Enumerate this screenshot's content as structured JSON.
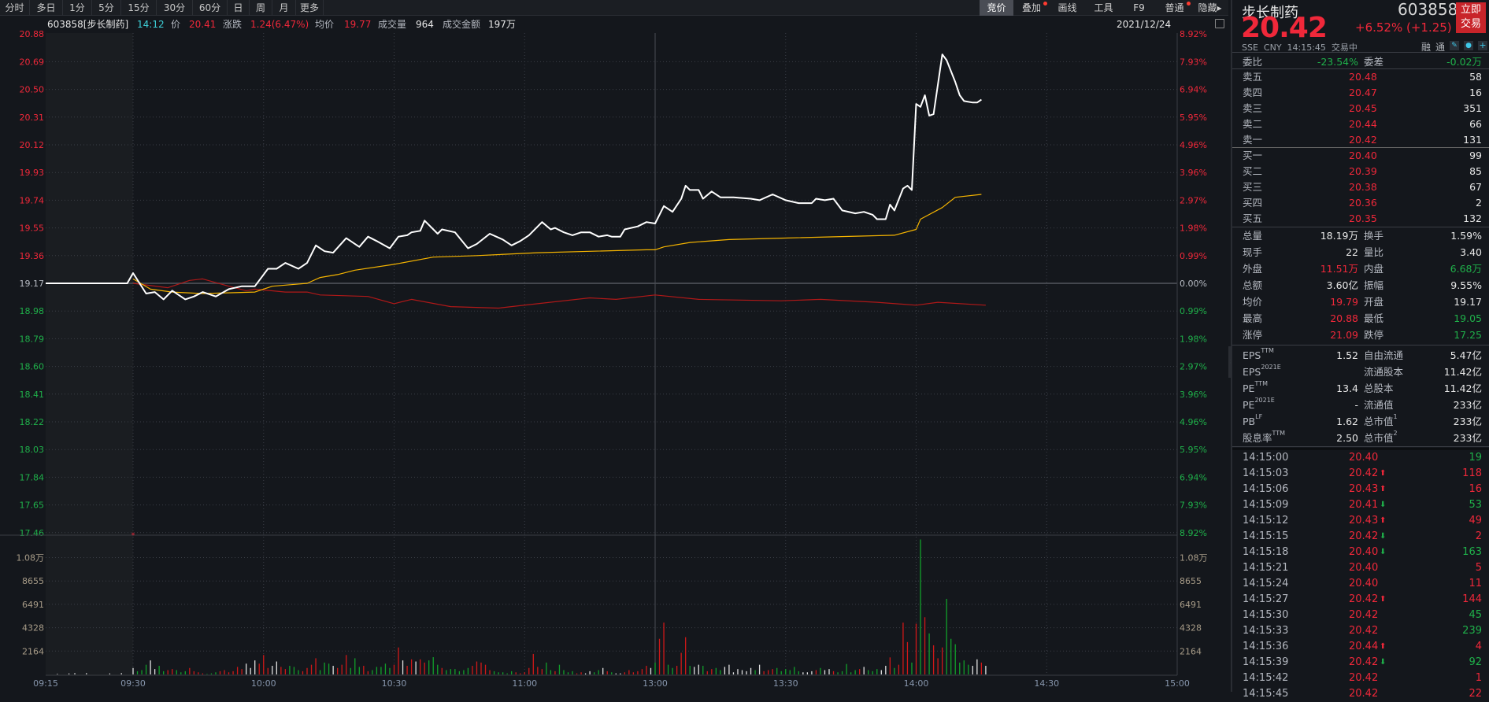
{
  "toolbar": {
    "period_tabs": [
      "分时",
      "多日",
      "1分",
      "5分",
      "15分",
      "30分",
      "60分",
      "日",
      "周",
      "月",
      "更多"
    ],
    "right_tabs": [
      {
        "label": "竞价",
        "active": true,
        "dot": false
      },
      {
        "label": "叠加",
        "active": false,
        "dot": true
      },
      {
        "label": "画线",
        "active": false,
        "dot": false
      },
      {
        "label": "工具",
        "active": false,
        "dot": false
      },
      {
        "label": "F9",
        "active": false,
        "dot": false
      },
      {
        "label": "普通",
        "active": false,
        "dot": true
      },
      {
        "label": "隐藏▸",
        "active": false,
        "dot": false
      }
    ]
  },
  "info": {
    "code_name": "603858[步长制药]",
    "time": "14:12",
    "price_label": "价",
    "price": "20.41",
    "change_label": "涨跌",
    "change": "1.24(6.47%)",
    "avg_label": "均价",
    "avg": "19.77",
    "vol_label": "成交量",
    "vol": "964",
    "amount_label": "成交金额",
    "amount": "197万",
    "date": "2021/12/24"
  },
  "colors": {
    "up": "#f0283a",
    "down": "#1fb04a",
    "price_line": "#ffffff",
    "avg_line": "#f5b400",
    "overlay_line": "#b01818",
    "grid": "#3a3e46"
  },
  "chart_data": {
    "type": "line",
    "title": "603858 步长制药 分时",
    "prev_close": 19.17,
    "price_axis_left": [
      "20.88",
      "20.69",
      "20.50",
      "20.31",
      "20.12",
      "19.93",
      "19.74",
      "19.55",
      "19.36",
      "19.17",
      "18.98",
      "18.79",
      "18.60",
      "18.41",
      "18.22",
      "18.03",
      "17.84",
      "17.65",
      "17.46"
    ],
    "pct_axis_right": [
      "8.92%",
      "7.93%",
      "6.94%",
      "5.95%",
      "4.96%",
      "3.96%",
      "2.97%",
      "1.98%",
      "0.99%",
      "0.00%",
      "0.99%",
      "1.98%",
      "2.97%",
      "3.96%",
      "4.96%",
      "5.95%",
      "6.94%",
      "7.93%",
      "8.92%"
    ],
    "ylim": [
      17.46,
      20.88
    ],
    "volume_axis": [
      "1.08万",
      "8655",
      "6491",
      "4328",
      "2164"
    ],
    "volume_axis_values": [
      10820,
      8655,
      6491,
      4328,
      2164
    ],
    "x_ticks": [
      "09:15",
      "09:30",
      "10:00",
      "10:30",
      "11:00",
      "13:00",
      "13:30",
      "14:00",
      "14:30",
      "15:00"
    ],
    "price_series": [
      [
        "09:15",
        19.17
      ],
      [
        "09:29",
        19.17
      ],
      [
        "09:30",
        19.24
      ],
      [
        "09:33",
        19.1
      ],
      [
        "09:35",
        19.11
      ],
      [
        "09:37",
        19.06
      ],
      [
        "09:39",
        19.12
      ],
      [
        "09:42",
        19.06
      ],
      [
        "09:44",
        19.08
      ],
      [
        "09:46",
        19.11
      ],
      [
        "09:49",
        19.08
      ],
      [
        "09:52",
        19.13
      ],
      [
        "09:55",
        19.15
      ],
      [
        "09:58",
        19.15
      ],
      [
        "10:01",
        19.27
      ],
      [
        "10:03",
        19.27
      ],
      [
        "10:05",
        19.31
      ],
      [
        "10:08",
        19.27
      ],
      [
        "10:10",
        19.31
      ],
      [
        "10:12",
        19.43
      ],
      [
        "10:14",
        19.39
      ],
      [
        "10:16",
        19.38
      ],
      [
        "10:19",
        19.48
      ],
      [
        "10:22",
        19.42
      ],
      [
        "10:24",
        19.49
      ],
      [
        "10:26",
        19.46
      ],
      [
        "10:29",
        19.41
      ],
      [
        "10:31",
        19.49
      ],
      [
        "10:33",
        19.5
      ],
      [
        "10:34",
        19.52
      ],
      [
        "10:36",
        19.53
      ],
      [
        "10:37",
        19.6
      ],
      [
        "10:40",
        19.51
      ],
      [
        "10:41",
        19.54
      ],
      [
        "10:44",
        19.52
      ],
      [
        "10:47",
        19.41
      ],
      [
        "10:49",
        19.44
      ],
      [
        "10:52",
        19.51
      ],
      [
        "10:55",
        19.47
      ],
      [
        "10:57",
        19.43
      ],
      [
        "10:59",
        19.46
      ],
      [
        "11:01",
        19.5
      ],
      [
        "11:04",
        19.59
      ],
      [
        "11:06",
        19.54
      ],
      [
        "11:07",
        19.55
      ],
      [
        "11:09",
        19.52
      ],
      [
        "11:11",
        19.5
      ],
      [
        "11:13",
        19.52
      ],
      [
        "11:15",
        19.52
      ],
      [
        "11:17",
        19.49
      ],
      [
        "11:19",
        19.5
      ],
      [
        "11:20",
        19.49
      ],
      [
        "11:22",
        19.49
      ],
      [
        "11:23",
        19.54
      ],
      [
        "11:26",
        19.56
      ],
      [
        "11:28",
        19.59
      ],
      [
        "11:30",
        19.58
      ],
      [
        "13:02",
        19.7
      ],
      [
        "13:04",
        19.66
      ],
      [
        "13:06",
        19.75
      ],
      [
        "13:07",
        19.84
      ],
      [
        "13:08",
        19.81
      ],
      [
        "13:10",
        19.81
      ],
      [
        "13:11",
        19.75
      ],
      [
        "13:13",
        19.8
      ],
      [
        "13:15",
        19.76
      ],
      [
        "13:18",
        19.76
      ],
      [
        "13:22",
        19.75
      ],
      [
        "13:24",
        19.74
      ],
      [
        "13:27",
        19.78
      ],
      [
        "13:30",
        19.74
      ],
      [
        "13:33",
        19.72
      ],
      [
        "13:36",
        19.72
      ],
      [
        "13:37",
        19.75
      ],
      [
        "13:39",
        19.74
      ],
      [
        "13:41",
        19.75
      ],
      [
        "13:43",
        19.67
      ],
      [
        "13:46",
        19.65
      ],
      [
        "13:48",
        19.66
      ],
      [
        "13:50",
        19.64
      ],
      [
        "13:51",
        19.61
      ],
      [
        "13:53",
        19.61
      ],
      [
        "13:54",
        19.71
      ],
      [
        "13:55",
        19.67
      ],
      [
        "13:57",
        19.82
      ],
      [
        "13:58",
        19.84
      ],
      [
        "13:59",
        19.81
      ],
      [
        "14:00",
        20.4
      ],
      [
        "14:01",
        20.38
      ],
      [
        "14:02",
        20.46
      ],
      [
        "14:03",
        20.32
      ],
      [
        "14:04",
        20.33
      ],
      [
        "14:06",
        20.74
      ],
      [
        "14:07",
        20.7
      ],
      [
        "14:09",
        20.55
      ],
      [
        "14:10",
        20.46
      ],
      [
        "14:11",
        20.42
      ],
      [
        "14:13",
        20.41
      ],
      [
        "14:14",
        20.41
      ],
      [
        "14:15",
        20.43
      ]
    ],
    "avg_series": [
      [
        "09:30",
        19.2
      ],
      [
        "09:34",
        19.13
      ],
      [
        "09:39",
        19.11
      ],
      [
        "09:46",
        19.1
      ],
      [
        "09:58",
        19.11
      ],
      [
        "10:02",
        19.15
      ],
      [
        "10:10",
        19.17
      ],
      [
        "10:13",
        19.21
      ],
      [
        "10:17",
        19.23
      ],
      [
        "10:21",
        19.26
      ],
      [
        "10:30",
        19.3
      ],
      [
        "10:39",
        19.35
      ],
      [
        "10:49",
        19.36
      ],
      [
        "11:03",
        19.38
      ],
      [
        "11:28",
        19.4
      ],
      [
        "13:00",
        19.4
      ],
      [
        "13:02",
        19.42
      ],
      [
        "13:08",
        19.45
      ],
      [
        "13:17",
        19.47
      ],
      [
        "13:29",
        19.48
      ],
      [
        "13:55",
        19.5
      ],
      [
        "14:00",
        19.54
      ],
      [
        "14:01",
        19.61
      ],
      [
        "14:06",
        19.69
      ],
      [
        "14:09",
        19.76
      ],
      [
        "14:15",
        19.78
      ]
    ],
    "overlay_series": [
      [
        "09:30",
        19.17
      ],
      [
        "09:38",
        19.14
      ],
      [
        "09:43",
        19.19
      ],
      [
        "09:46",
        19.2
      ],
      [
        "09:52",
        19.15
      ],
      [
        "09:56",
        19.12
      ],
      [
        "09:58",
        19.13
      ],
      [
        "10:05",
        19.11
      ],
      [
        "10:10",
        19.11
      ],
      [
        "10:13",
        19.09
      ],
      [
        "10:24",
        19.08
      ],
      [
        "10:30",
        19.03
      ],
      [
        "10:34",
        19.06
      ],
      [
        "10:43",
        19.01
      ],
      [
        "10:54",
        19.0
      ],
      [
        "11:03",
        19.03
      ],
      [
        "11:15",
        19.07
      ],
      [
        "11:21",
        19.06
      ],
      [
        "13:00",
        19.09
      ],
      [
        "13:10",
        19.06
      ],
      [
        "13:29",
        19.05
      ],
      [
        "13:38",
        19.06
      ],
      [
        "13:51",
        19.04
      ],
      [
        "14:00",
        19.02
      ],
      [
        "14:05",
        19.04
      ],
      [
        "14:16",
        19.02
      ]
    ],
    "auction_volumes": [
      [
        "09:17",
        60
      ],
      [
        "09:19",
        100
      ],
      [
        "09:20",
        130
      ],
      [
        "09:22",
        130
      ],
      [
        "09:26",
        100
      ],
      [
        "09:28",
        130
      ]
    ],
    "volumes_per_minute_from_0930": [
      600,
      300,
      400,
      900,
      1300,
      500,
      800,
      300,
      400,
      500,
      400,
      200,
      300,
      600,
      300,
      200,
      100,
      50,
      100,
      200,
      300,
      400,
      200,
      300,
      700,
      500,
      1000,
      600,
      1300,
      1000,
      1800,
      600,
      800,
      1200,
      700,
      500,
      800,
      700,
      400,
      300,
      600,
      900,
      1500,
      400,
      1100,
      1000,
      800,
      600,
      900,
      1800,
      600,
      1500,
      700,
      800,
      300,
      400,
      700,
      700,
      1000,
      600,
      900,
      2500,
      1300,
      800,
      1400,
      1200,
      1400,
      1100,
      1300,
      1600,
      900,
      600,
      400,
      500,
      500,
      300,
      400,
      600,
      800,
      1200,
      1100,
      900,
      400,
      300,
      200,
      200,
      100,
      300,
      200,
      100,
      200,
      600,
      1900,
      700,
      500,
      1100,
      400,
      300,
      900,
      400,
      200,
      300,
      100,
      200,
      100,
      300,
      200,
      400,
      600,
      300,
      200,
      100,
      100,
      200,
      400,
      200,
      300,
      500,
      800,
      600,
      1100,
      3300,
      4800,
      900,
      600,
      800,
      2000,
      3450,
      800,
      700,
      900,
      800,
      300,
      500,
      600,
      400,
      700,
      900,
      200,
      500,
      400,
      300,
      600,
      400,
      900,
      300,
      400,
      500,
      600,
      300,
      500,
      400,
      700,
      300,
      200,
      200,
      300,
      400,
      600,
      400,
      500,
      300,
      200,
      300,
      970,
      200,
      400,
      500,
      700,
      400,
      300,
      500,
      400,
      800,
      1580,
      600,
      900,
      4800,
      3000,
      1100,
      4700,
      12500,
      5300,
      3800,
      2700,
      1500,
      2500,
      7000,
      3300,
      2800,
      1100,
      1300,
      900,
      800,
      1400,
      1100,
      800
    ]
  },
  "panel": {
    "name": "步长制药",
    "code": "603858",
    "trade_button": "立即交易",
    "price": "20.42",
    "change": "+6.52% (+1.25)",
    "meta": "SSE  CNY  14:15:45  交易中",
    "tags": [
      "融",
      "通"
    ],
    "weibi": {
      "label": "委比",
      "value": "-23.54%",
      "label2": "委差",
      "value2": "-0.02万"
    },
    "sell": [
      {
        "label": "卖五",
        "price": "20.48",
        "vol": "58"
      },
      {
        "label": "卖四",
        "price": "20.47",
        "vol": "16"
      },
      {
        "label": "卖三",
        "price": "20.45",
        "vol": "351"
      },
      {
        "label": "卖二",
        "price": "20.44",
        "vol": "66"
      },
      {
        "label": "卖一",
        "price": "20.42",
        "vol": "131"
      }
    ],
    "buy": [
      {
        "label": "买一",
        "price": "20.40",
        "vol": "99"
      },
      {
        "label": "买二",
        "price": "20.39",
        "vol": "85"
      },
      {
        "label": "买三",
        "price": "20.38",
        "vol": "67"
      },
      {
        "label": "买四",
        "price": "20.36",
        "vol": "2"
      },
      {
        "label": "买五",
        "price": "20.35",
        "vol": "132"
      }
    ],
    "stats": [
      {
        "l1": "总量",
        "v1": "18.19万",
        "c1": "white",
        "l2": "换手",
        "v2": "1.59%",
        "c2": "white"
      },
      {
        "l1": "现手",
        "v1": "22",
        "c1": "white",
        "l2": "量比",
        "v2": "3.40",
        "c2": "white"
      },
      {
        "l1": "外盘",
        "v1": "11.51万",
        "c1": "red",
        "l2": "内盘",
        "v2": "6.68万",
        "c2": "green"
      },
      {
        "l1": "总额",
        "v1": "3.60亿",
        "c1": "white",
        "l2": "振幅",
        "v2": "9.55%",
        "c2": "white"
      },
      {
        "l1": "均价",
        "v1": "19.79",
        "c1": "red",
        "l2": "开盘",
        "v2": "19.17",
        "c2": "white"
      },
      {
        "l1": "最高",
        "v1": "20.88",
        "c1": "red",
        "l2": "最低",
        "v2": "19.05",
        "c2": "green"
      },
      {
        "l1": "涨停",
        "v1": "21.09",
        "c1": "red",
        "l2": "跌停",
        "v2": "17.25",
        "c2": "green"
      }
    ],
    "fundamentals": [
      {
        "l1": "EPS",
        "s1": "TTM",
        "v1": "1.52",
        "l2": "自由流通",
        "s2": "",
        "v2": "5.47亿"
      },
      {
        "l1": "EPS",
        "s1": "2021E",
        "v1": "",
        "l2": "流通股本",
        "s2": "",
        "v2": "11.42亿"
      },
      {
        "l1": "PE",
        "s1": "TTM",
        "v1": "13.4",
        "l2": "总股本",
        "s2": "",
        "v2": "11.42亿"
      },
      {
        "l1": "PE",
        "s1": "2021E",
        "v1": "-",
        "l2": "流通值",
        "s2": "",
        "v2": "233亿"
      },
      {
        "l1": "PB",
        "s1": "LF",
        "v1": "1.62",
        "l2": "总市值",
        "s2": "1",
        "v2": "233亿"
      },
      {
        "l1": "股息率",
        "s1": "TTM",
        "v1": "2.50",
        "l2": "总市值",
        "s2": "2",
        "v2": "233亿"
      }
    ],
    "ticks": [
      {
        "time": "14:15:00",
        "price": "20.40",
        "dir": "",
        "vol": "19",
        "vc": "green"
      },
      {
        "time": "14:15:03",
        "price": "20.42",
        "dir": "up",
        "vol": "118",
        "vc": "red"
      },
      {
        "time": "14:15:06",
        "price": "20.43",
        "dir": "up",
        "vol": "16",
        "vc": "red"
      },
      {
        "time": "14:15:09",
        "price": "20.41",
        "dir": "down",
        "vol": "53",
        "vc": "green"
      },
      {
        "time": "14:15:12",
        "price": "20.43",
        "dir": "up",
        "vol": "49",
        "vc": "red"
      },
      {
        "time": "14:15:15",
        "price": "20.42",
        "dir": "down",
        "vol": "2",
        "vc": "red"
      },
      {
        "time": "14:15:18",
        "price": "20.40",
        "dir": "down",
        "vol": "163",
        "vc": "green"
      },
      {
        "time": "14:15:21",
        "price": "20.40",
        "dir": "",
        "vol": "5",
        "vc": "red"
      },
      {
        "time": "14:15:24",
        "price": "20.40",
        "dir": "",
        "vol": "11",
        "vc": "red"
      },
      {
        "time": "14:15:27",
        "price": "20.42",
        "dir": "up",
        "vol": "144",
        "vc": "red"
      },
      {
        "time": "14:15:30",
        "price": "20.42",
        "dir": "",
        "vol": "45",
        "vc": "green"
      },
      {
        "time": "14:15:33",
        "price": "20.42",
        "dir": "",
        "vol": "239",
        "vc": "green"
      },
      {
        "time": "14:15:36",
        "price": "20.44",
        "dir": "up",
        "vol": "4",
        "vc": "red"
      },
      {
        "time": "14:15:39",
        "price": "20.42",
        "dir": "down",
        "vol": "92",
        "vc": "green"
      },
      {
        "time": "14:15:42",
        "price": "20.42",
        "dir": "",
        "vol": "1",
        "vc": "red"
      },
      {
        "time": "14:15:45",
        "price": "20.42",
        "dir": "",
        "vol": "22",
        "vc": "red"
      }
    ]
  }
}
